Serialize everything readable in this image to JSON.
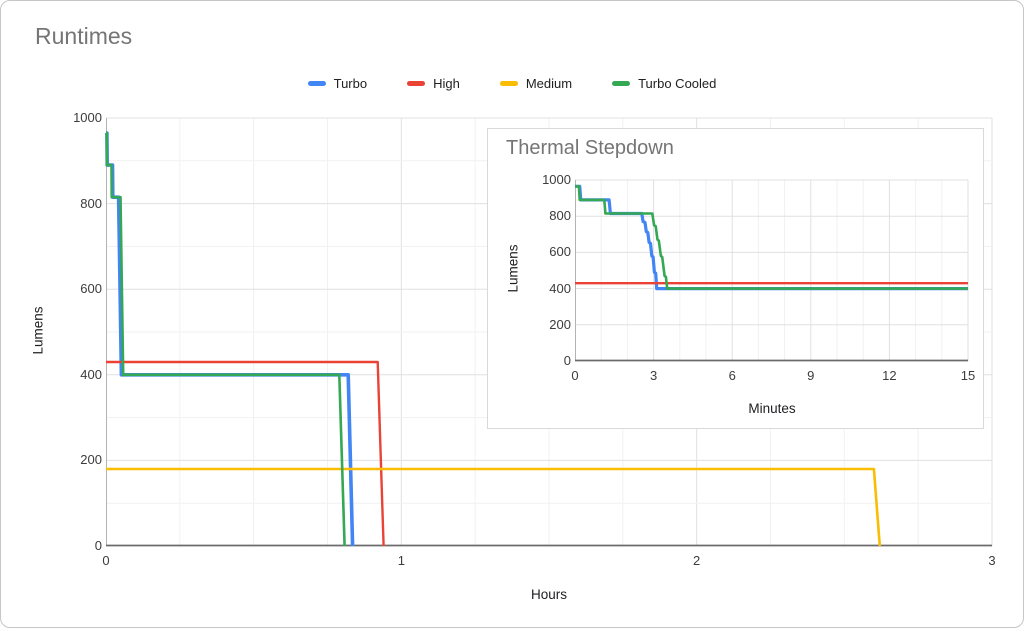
{
  "title": "Runtimes",
  "legend": {
    "items": [
      {
        "label": "Turbo",
        "color": "#4285f4"
      },
      {
        "label": "High",
        "color": "#ea4335"
      },
      {
        "label": "Medium",
        "color": "#fbbc04"
      },
      {
        "label": "Turbo Cooled",
        "color": "#34a853"
      }
    ]
  },
  "styles": {
    "title_color": "#757575",
    "tick_color": "#3c3c3c",
    "grid_major": "#e0e0e0",
    "grid_minor": "#f1f1f1",
    "axis_color": "#b3b3b3",
    "baseline_color": "#6b6b6b",
    "canvas_border": "#c6c6c6",
    "inset_border": "#d9d9d9"
  },
  "chart_data": [
    {
      "type": "line",
      "title": "Runtimes",
      "xlabel": "Hours",
      "ylabel": "Lumens",
      "xlim": [
        0,
        3
      ],
      "ylim": [
        0,
        1000
      ],
      "xticks": [
        0,
        1,
        2,
        3
      ],
      "yticks": [
        0,
        200,
        400,
        600,
        800,
        1000
      ],
      "x_minor_step": 0.25,
      "x_major_step": 1,
      "y_minor_step": 100,
      "y_major_step": 200,
      "grid": true,
      "legend_position": "top",
      "series": [
        {
          "name": "Turbo",
          "color": "#4285f4",
          "width": 3.6,
          "points": [
            [
              0,
              965
            ],
            [
              0.003,
              965
            ],
            [
              0.004,
              890
            ],
            [
              0.022,
              890
            ],
            [
              0.023,
              815
            ],
            [
              0.0425,
              815
            ],
            [
              0.052,
              400
            ],
            [
              0.82,
              400
            ],
            [
              0.835,
              0
            ]
          ]
        },
        {
          "name": "High",
          "color": "#ea4335",
          "width": 2.4,
          "points": [
            [
              0,
              430
            ],
            [
              0.92,
              430
            ],
            [
              0.94,
              0
            ]
          ]
        },
        {
          "name": "Medium",
          "color": "#fbbc04",
          "width": 2.6,
          "points": [
            [
              0,
              180
            ],
            [
              2.6,
              180
            ],
            [
              2.62,
              0
            ]
          ]
        },
        {
          "name": "Turbo Cooled",
          "color": "#34a853",
          "width": 2.6,
          "points": [
            [
              0,
              965
            ],
            [
              0.0025,
              965
            ],
            [
              0.003,
              890
            ],
            [
              0.0187,
              890
            ],
            [
              0.0193,
              815
            ],
            [
              0.0492,
              815
            ],
            [
              0.0583,
              400
            ],
            [
              0.79,
              400
            ],
            [
              0.808,
              0
            ]
          ]
        }
      ]
    },
    {
      "type": "line",
      "title": "Thermal Stepdown",
      "xlabel": "Minutes",
      "ylabel": "Lumens",
      "xlim": [
        0,
        15
      ],
      "ylim": [
        0,
        1000
      ],
      "xticks": [
        0,
        3,
        6,
        9,
        12,
        15
      ],
      "yticks": [
        0,
        200,
        400,
        600,
        800,
        1000
      ],
      "x_minor_step": 1,
      "x_major_step": 3,
      "y_minor_step": 200,
      "y_major_step": 200,
      "grid": true,
      "legend_position": "none",
      "series": [
        {
          "name": "Turbo",
          "color": "#4285f4",
          "width": 3.2,
          "points": [
            [
              0,
              965
            ],
            [
              0.18,
              965
            ],
            [
              0.22,
              890
            ],
            [
              1.3,
              890
            ],
            [
              1.35,
              815
            ],
            [
              2.55,
              815
            ],
            [
              2.6,
              770
            ],
            [
              2.67,
              765
            ],
            [
              2.72,
              715
            ],
            [
              2.78,
              710
            ],
            [
              2.83,
              655
            ],
            [
              2.88,
              650
            ],
            [
              2.93,
              580
            ],
            [
              2.98,
              575
            ],
            [
              3.03,
              490
            ],
            [
              3.08,
              485
            ],
            [
              3.12,
              400
            ],
            [
              15,
              400
            ]
          ]
        },
        {
          "name": "High",
          "color": "#ea4335",
          "width": 2.4,
          "points": [
            [
              0,
              430
            ],
            [
              15,
              430
            ]
          ]
        },
        {
          "name": "Turbo Cooled",
          "color": "#34a853",
          "width": 2.6,
          "points": [
            [
              0,
              965
            ],
            [
              0.15,
              965
            ],
            [
              0.18,
              890
            ],
            [
              1.12,
              890
            ],
            [
              1.16,
              815
            ],
            [
              2.95,
              815
            ],
            [
              3.02,
              750
            ],
            [
              3.08,
              745
            ],
            [
              3.15,
              670
            ],
            [
              3.2,
              665
            ],
            [
              3.28,
              580
            ],
            [
              3.33,
              575
            ],
            [
              3.42,
              470
            ],
            [
              3.47,
              465
            ],
            [
              3.52,
              400
            ],
            [
              15,
              400
            ]
          ]
        }
      ]
    }
  ]
}
